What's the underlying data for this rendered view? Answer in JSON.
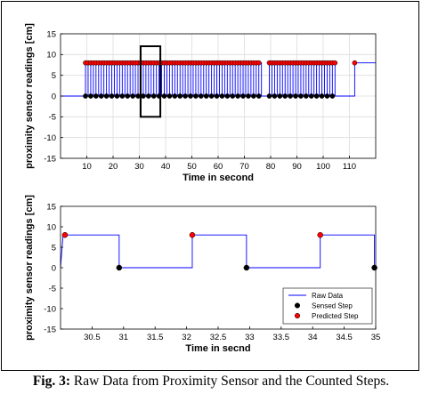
{
  "chart_data": [
    {
      "type": "line",
      "xlabel": "Time in second",
      "ylabel": "proximity sensor readings [cm]",
      "xlim": [
        0,
        120
      ],
      "ylim": [
        -15,
        15
      ],
      "xticks": [
        10,
        20,
        30,
        40,
        50,
        60,
        70,
        80,
        90,
        100,
        110
      ],
      "yticks": [
        -15,
        -10,
        -5,
        0,
        5,
        10,
        15
      ],
      "grid": true,
      "highlight_box": {
        "x": [
          30.5,
          38
        ],
        "y": [
          -5,
          12
        ]
      },
      "series": [
        {
          "name": "Raw Data",
          "style": "line",
          "color": "#0000ff",
          "signal": "square wave, 0 cm / 8 cm, period ~2 s, from 9.5 s to 105 s (gap 76-79 s), final step at 112 s"
        },
        {
          "name": "Sensed Step",
          "style": "marker",
          "color": "#000000",
          "y": 0,
          "x": [
            9.5,
            11.5,
            13.5,
            15.5,
            17.5,
            19.5,
            21.5,
            23.5,
            25.5,
            27.5,
            29.5,
            31.5,
            33.5,
            35.5,
            37.5,
            39.5,
            41.5,
            43.5,
            45.5,
            47.5,
            49.5,
            51.5,
            53.5,
            55.5,
            57.5,
            59.5,
            61.5,
            63.5,
            65.5,
            67.5,
            69.5,
            71.5,
            73.5,
            75.5,
            79.5,
            81.5,
            83.5,
            85.5,
            87.5,
            89.5,
            91.5,
            93.5,
            95.5,
            97.5,
            99.5,
            101.5,
            103.5
          ]
        },
        {
          "name": "Predicted Step",
          "style": "marker",
          "color": "#ff0000",
          "y": 8,
          "x": [
            9.5,
            10.5,
            11.5,
            12.5,
            13.5,
            14.5,
            15.5,
            16.5,
            17.5,
            18.5,
            19.5,
            20.5,
            21.5,
            22.5,
            23.5,
            24.5,
            25.5,
            26.5,
            27.5,
            28.5,
            29.5,
            30.5,
            31.5,
            32.5,
            33.5,
            34.5,
            35.5,
            36.5,
            37.5,
            38.5,
            39.5,
            40.5,
            41.5,
            42.5,
            43.5,
            44.5,
            45.5,
            46.5,
            47.5,
            48.5,
            49.5,
            50.5,
            51.5,
            52.5,
            53.5,
            54.5,
            55.5,
            56.5,
            57.5,
            58.5,
            59.5,
            60.5,
            61.5,
            62.5,
            63.5,
            64.5,
            65.5,
            66.5,
            67.5,
            68.5,
            69.5,
            70.5,
            71.5,
            72.5,
            73.5,
            74.5,
            75.5,
            79.5,
            80.5,
            81.5,
            82.5,
            83.5,
            84.5,
            85.5,
            86.5,
            87.5,
            88.5,
            89.5,
            90.5,
            91.5,
            92.5,
            93.5,
            94.5,
            95.5,
            96.5,
            97.5,
            98.5,
            99.5,
            100.5,
            101.5,
            102.5,
            103.5,
            104.5,
            112
          ]
        }
      ]
    },
    {
      "type": "line",
      "xlabel": "Time in secnd",
      "ylabel": "proximity sensor readings [cm]",
      "xlim": [
        30,
        35
      ],
      "ylim": [
        -15,
        15
      ],
      "xticks": [
        30.5,
        31,
        31.5,
        32,
        32.5,
        33,
        33.5,
        34,
        34.5,
        35
      ],
      "yticks": [
        -15,
        -10,
        -5,
        0,
        5,
        10,
        15
      ],
      "grid": false,
      "legend": "bottom-right",
      "series": [
        {
          "name": "Raw Data",
          "style": "line",
          "color": "#0000ff",
          "x": [
            30.0,
            30.04,
            30.07,
            30.93,
            30.93,
            32.09,
            32.09,
            32.95,
            32.95,
            34.12,
            34.12,
            34.98,
            34.98
          ],
          "y": [
            0,
            8,
            8,
            8,
            0,
            0,
            8,
            8,
            0,
            0,
            8,
            8,
            0
          ]
        },
        {
          "name": "Sensed Step",
          "style": "marker",
          "color": "#000000",
          "x": [
            30.93,
            32.95,
            34.98
          ],
          "y": [
            0,
            0,
            0
          ]
        },
        {
          "name": "Predicted Step",
          "style": "marker",
          "color": "#ff0000",
          "x": [
            30.07,
            32.09,
            34.12
          ],
          "y": [
            8,
            8,
            8
          ]
        }
      ]
    }
  ],
  "caption": {
    "label": "Fig. 3:",
    "text": " Raw Data from Proximity Sensor and the Counted Steps."
  }
}
